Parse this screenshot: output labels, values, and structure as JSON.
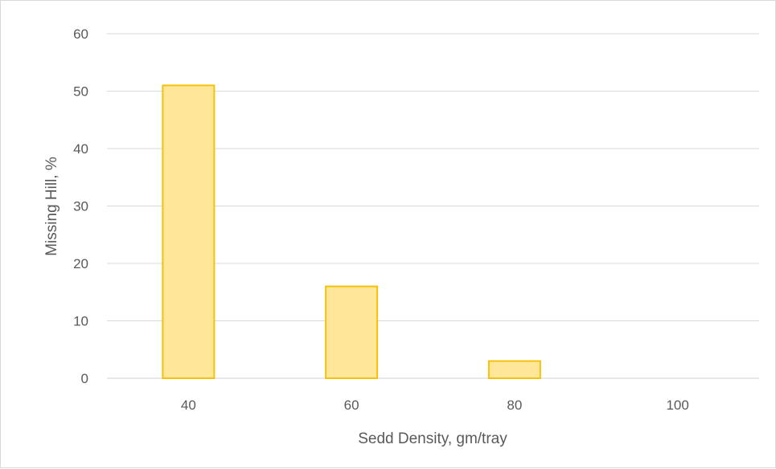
{
  "chart_data": {
    "type": "bar",
    "title": "",
    "xlabel": "Sedd Density, gm/tray",
    "ylabel": "Missing Hill, %",
    "categories": [
      "40",
      "60",
      "80",
      "100"
    ],
    "values": [
      51,
      16,
      3,
      0
    ],
    "ylim": [
      0,
      60
    ],
    "yticks": [
      "0",
      "10",
      "20",
      "30",
      "40",
      "50",
      "60"
    ],
    "grid": true,
    "legend": "none",
    "bar_fill": "#ffe699",
    "bar_stroke": "#f4c20d",
    "text_color": "#595959",
    "grid_color": "#d9d9d9"
  }
}
